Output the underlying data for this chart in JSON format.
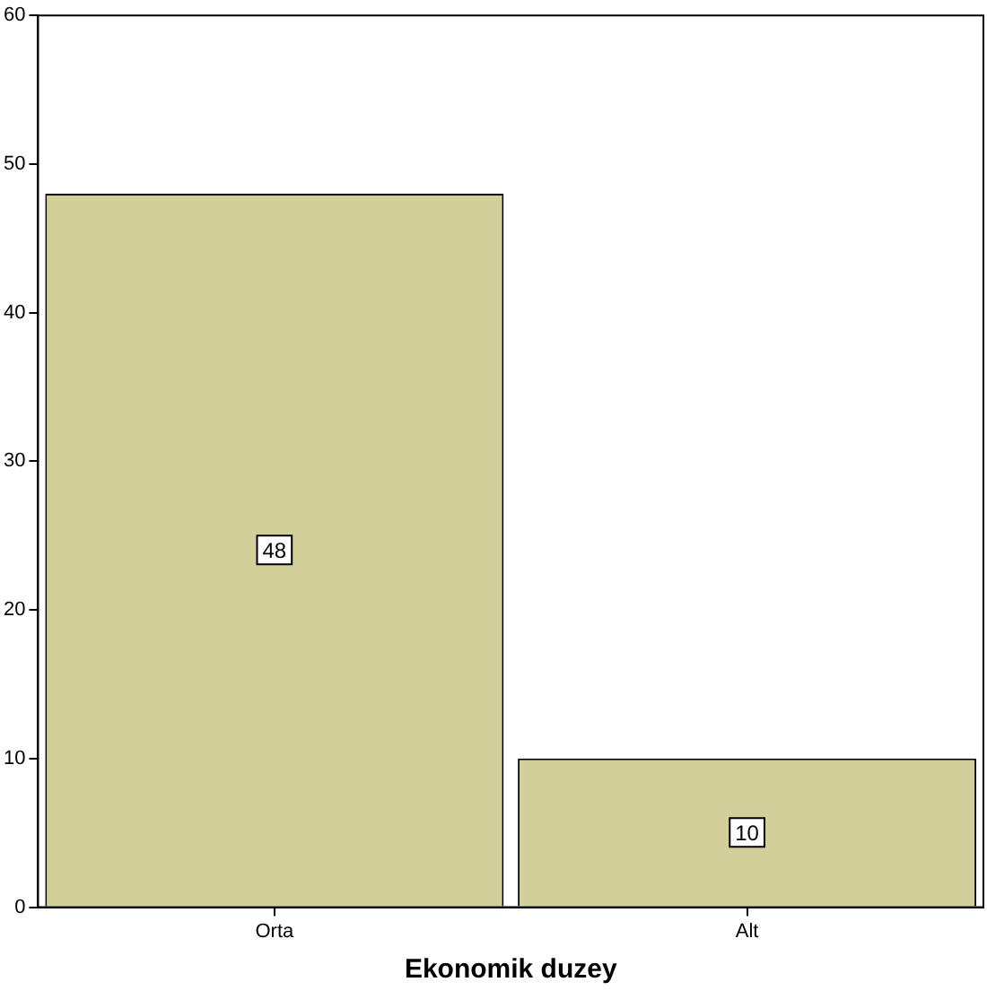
{
  "chart_data": {
    "type": "bar",
    "xlabel": "Ekonomik duzey",
    "categories": [
      "Orta",
      "Alt"
    ],
    "values": [
      48,
      10
    ],
    "color": "#d3cf9b",
    "ylim": [
      0,
      60
    ],
    "yticks": [
      0,
      10,
      20,
      30,
      40,
      50,
      60
    ],
    "grid": false,
    "legend": false,
    "data_labels": true
  }
}
